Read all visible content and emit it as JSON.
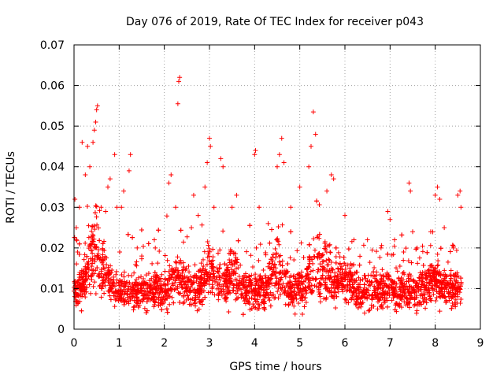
{
  "chart_data": {
    "type": "scatter",
    "title": "Day 076 of 2019, Rate Of TEC Index for receiver p043",
    "xlabel": "GPS time / hours",
    "ylabel": "ROTI / TECUs",
    "xlim": [
      0,
      9
    ],
    "ylim": [
      0,
      0.07
    ],
    "xticks": [
      "0",
      "1",
      "2",
      "3",
      "4",
      "5",
      "6",
      "7",
      "8",
      "9"
    ],
    "yticks": [
      "0",
      "0.01",
      "0.02",
      "0.03",
      "0.04",
      "0.05",
      "0.06",
      "0.07"
    ],
    "grid": true,
    "marker": "+",
    "x_range_of_data": [
      0,
      8.58
    ],
    "series": [
      {
        "name": "ROTI",
        "color": "#ff0000",
        "notes_points": "dense cloud, mostly between 0.005 and 0.02 TECU with spikes",
        "points": [
          [
            0.02,
            0.032
          ],
          [
            0.05,
            0.025
          ],
          [
            0.08,
            0.019
          ],
          [
            0.12,
            0.03
          ],
          [
            0.18,
            0.046
          ],
          [
            0.25,
            0.038
          ],
          [
            0.3,
            0.045
          ],
          [
            0.35,
            0.04
          ],
          [
            0.42,
            0.046
          ],
          [
            0.45,
            0.049
          ],
          [
            0.48,
            0.051
          ],
          [
            0.5,
            0.054
          ],
          [
            0.52,
            0.055
          ],
          [
            0.6,
            0.03
          ],
          [
            0.7,
            0.029
          ],
          [
            0.75,
            0.035
          ],
          [
            0.8,
            0.037
          ],
          [
            0.9,
            0.043
          ],
          [
            0.95,
            0.03
          ],
          [
            1.05,
            0.03
          ],
          [
            1.1,
            0.034
          ],
          [
            1.25,
            0.043
          ],
          [
            1.22,
            0.039
          ],
          [
            1.4,
            0.02
          ],
          [
            1.5,
            0.018
          ],
          [
            1.8,
            0.02
          ],
          [
            2.1,
            0.036
          ],
          [
            2.15,
            0.038
          ],
          [
            2.25,
            0.03
          ],
          [
            2.3,
            0.0555
          ],
          [
            2.32,
            0.061
          ],
          [
            2.34,
            0.062
          ],
          [
            2.6,
            0.025
          ],
          [
            2.65,
            0.033
          ],
          [
            2.75,
            0.028
          ],
          [
            2.9,
            0.035
          ],
          [
            2.95,
            0.041
          ],
          [
            3.0,
            0.047
          ],
          [
            3.02,
            0.045
          ],
          [
            3.1,
            0.03
          ],
          [
            3.25,
            0.042
          ],
          [
            3.3,
            0.04
          ],
          [
            3.5,
            0.03
          ],
          [
            3.6,
            0.033
          ],
          [
            4.0,
            0.043
          ],
          [
            4.02,
            0.044
          ],
          [
            4.1,
            0.03
          ],
          [
            4.3,
            0.026
          ],
          [
            4.5,
            0.04
          ],
          [
            4.55,
            0.043
          ],
          [
            4.6,
            0.047
          ],
          [
            4.65,
            0.041
          ],
          [
            4.8,
            0.03
          ],
          [
            5.0,
            0.035
          ],
          [
            5.2,
            0.04
          ],
          [
            5.25,
            0.045
          ],
          [
            5.3,
            0.0535
          ],
          [
            5.35,
            0.048
          ],
          [
            5.6,
            0.034
          ],
          [
            5.7,
            0.038
          ],
          [
            5.75,
            0.037
          ],
          [
            6.0,
            0.028
          ],
          [
            6.2,
            0.022
          ],
          [
            6.5,
            0.022
          ],
          [
            6.8,
            0.02
          ],
          [
            6.95,
            0.029
          ],
          [
            7.0,
            0.027
          ],
          [
            7.1,
            0.022
          ],
          [
            7.3,
            0.019
          ],
          [
            7.42,
            0.036
          ],
          [
            7.45,
            0.034
          ],
          [
            7.5,
            0.024
          ],
          [
            7.6,
            0.02
          ],
          [
            7.9,
            0.024
          ],
          [
            8.0,
            0.033
          ],
          [
            8.05,
            0.035
          ],
          [
            8.1,
            0.032
          ],
          [
            8.2,
            0.025
          ],
          [
            8.4,
            0.02
          ],
          [
            8.5,
            0.033
          ],
          [
            8.55,
            0.034
          ],
          [
            8.57,
            0.03
          ]
        ]
      }
    ]
  }
}
